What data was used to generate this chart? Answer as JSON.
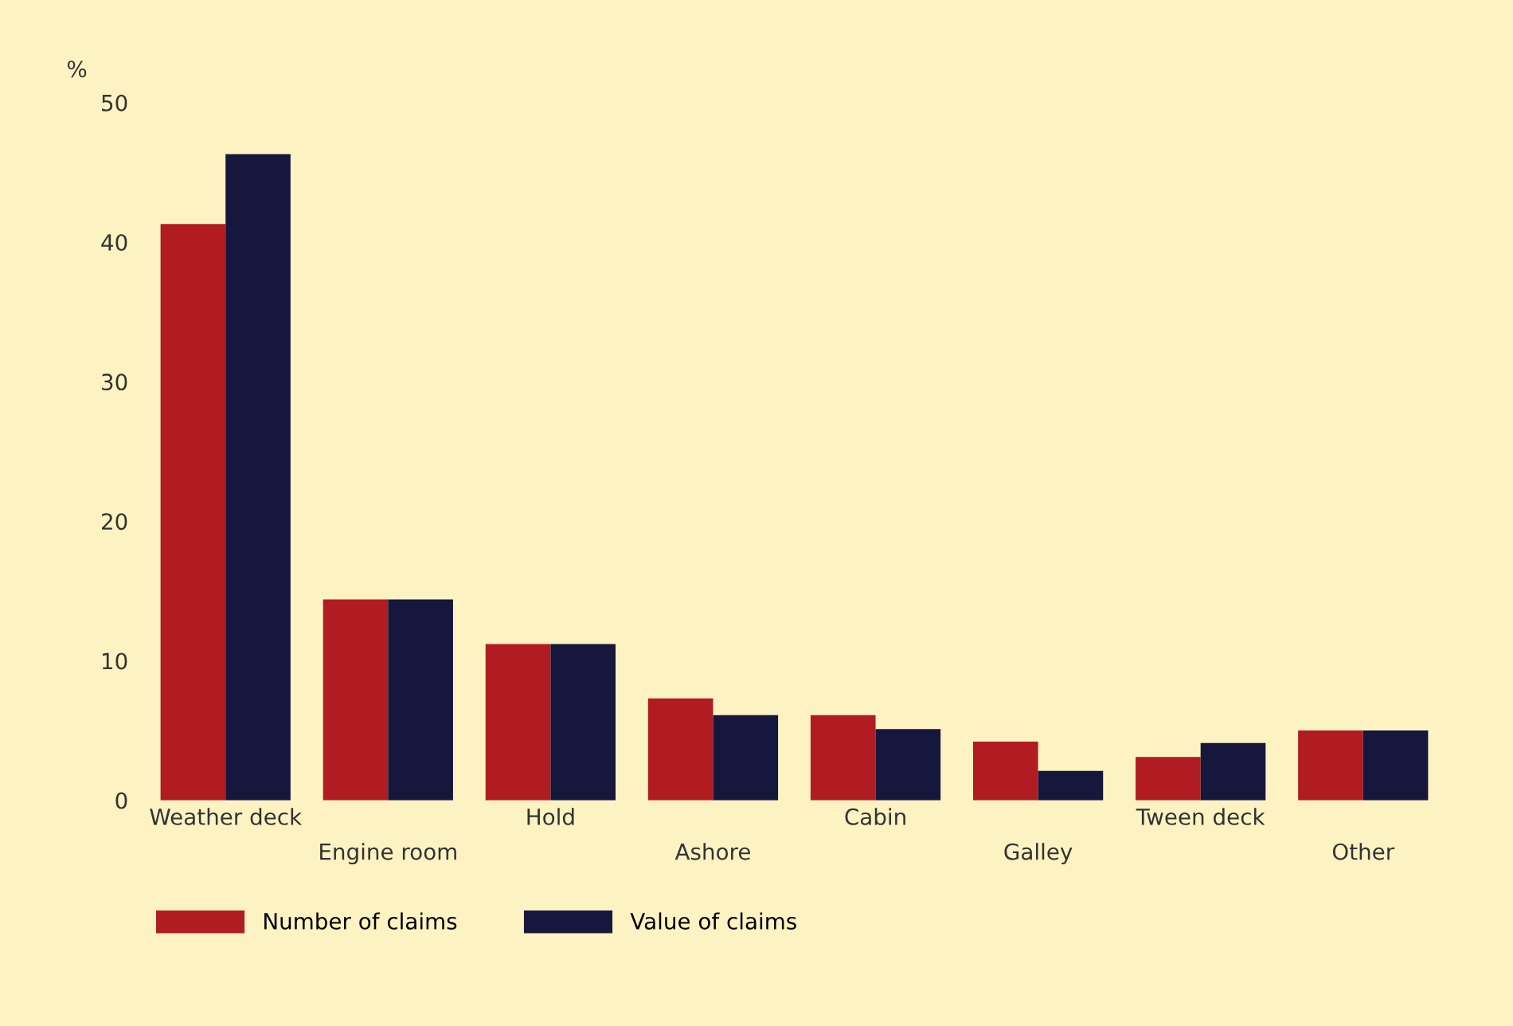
{
  "chart_data": {
    "type": "bar",
    "ylabel": "%",
    "categories": [
      "Weather deck",
      "Engine room",
      "Hold",
      "Ashore",
      "Cabin",
      "Galley",
      "Tween deck",
      "Other"
    ],
    "series": [
      {
        "name": "Number of claims",
        "color": "#b01c22",
        "values": [
          41.3,
          14.4,
          11.2,
          7.3,
          6.1,
          4.2,
          3.1,
          5.0
        ]
      },
      {
        "name": "Value of claims",
        "color": "#15173d",
        "values": [
          46.3,
          14.4,
          11.2,
          6.1,
          5.1,
          2.1,
          4.1,
          5.0
        ]
      }
    ],
    "ylim": [
      0,
      50
    ],
    "yticks": [
      0,
      10,
      20,
      30,
      40,
      50
    ],
    "grid": false,
    "legend": "bottom left"
  }
}
